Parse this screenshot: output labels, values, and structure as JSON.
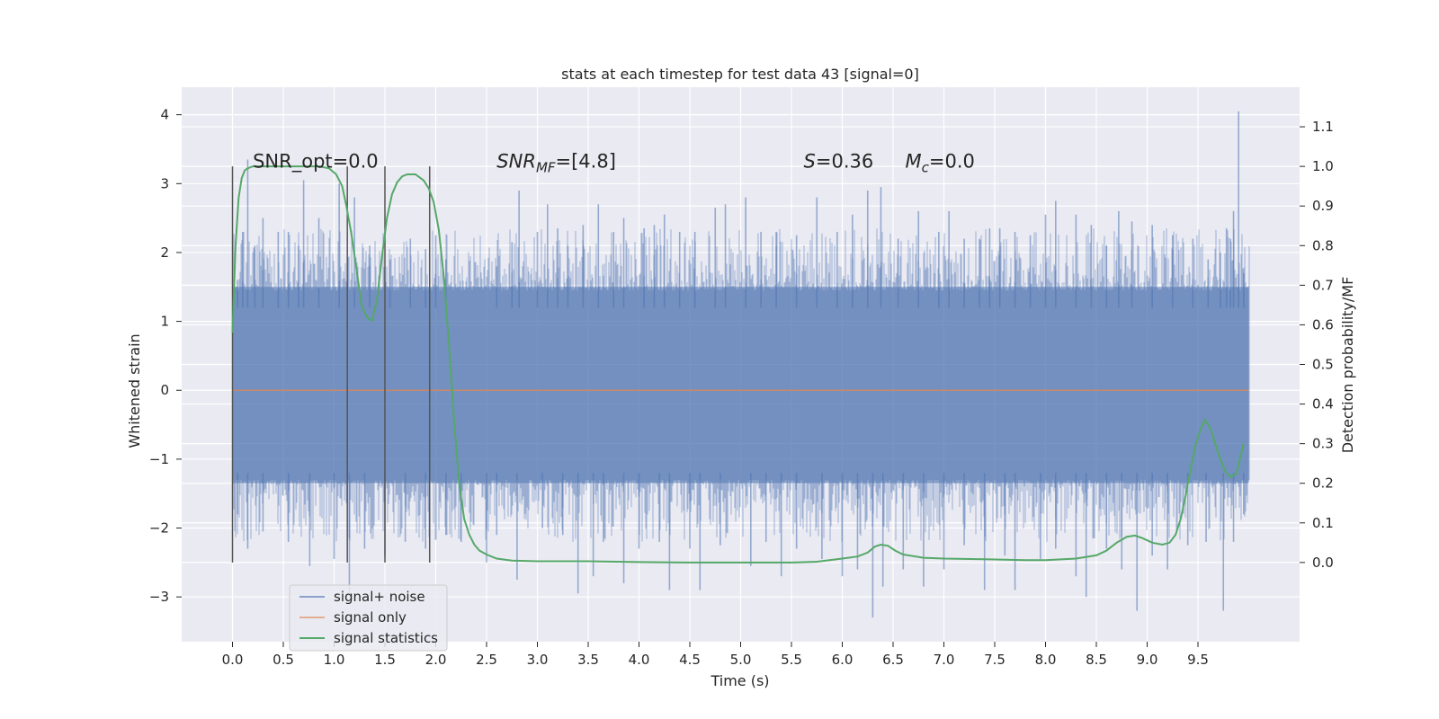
{
  "chart_data": {
    "type": "line",
    "title": "stats at each timestep for test data 43 [signal=0]",
    "xlabel": "Time (s)",
    "ylabel": "Whitened strain",
    "y2label": "Detection probability/MF",
    "xlim": [
      -0.5,
      10.5
    ],
    "ylim": [
      -3.65,
      4.4
    ],
    "y2lim": [
      -0.2,
      1.2
    ],
    "x_ticks": [
      0.0,
      0.5,
      1.0,
      1.5,
      2.0,
      2.5,
      3.0,
      3.5,
      4.0,
      4.5,
      5.0,
      5.5,
      6.0,
      6.5,
      7.0,
      7.5,
      8.0,
      8.5,
      9.0,
      9.5
    ],
    "x_tick_labels": [
      "0.0",
      "0.5",
      "1.0",
      "1.5",
      "2.0",
      "2.5",
      "3.0",
      "3.5",
      "4.0",
      "4.5",
      "5.0",
      "5.5",
      "6.0",
      "6.5",
      "7.0",
      "7.5",
      "8.0",
      "8.5",
      "9.0",
      "9.5"
    ],
    "y_ticks": [
      -3,
      -2,
      -1,
      0,
      1,
      2,
      3,
      4
    ],
    "y_tick_labels": [
      "−3",
      "−2",
      "−1",
      "0",
      "1",
      "2",
      "3",
      "4"
    ],
    "y2_ticks": [
      0.0,
      0.1,
      0.2,
      0.3,
      0.4,
      0.5,
      0.6,
      0.7,
      0.8,
      0.9,
      1.0,
      1.1
    ],
    "y2_tick_labels": [
      "0.0",
      "0.1",
      "0.2",
      "0.3",
      "0.4",
      "0.5",
      "0.6",
      "0.7",
      "0.8",
      "0.9",
      "1.0",
      "1.1"
    ],
    "grid": true,
    "legend_position": "lower-left",
    "series": [
      {
        "name": "signal+ noise",
        "color": "#4c72b0",
        "noise_band": [
          -1.35,
          1.5
        ],
        "t_range": [
          0.0,
          10.0
        ],
        "peaks": [
          [
            0.05,
            1.6
          ],
          [
            0.1,
            2.3
          ],
          [
            0.15,
            3.35
          ],
          [
            0.22,
            2.1
          ],
          [
            0.3,
            2.5
          ],
          [
            0.45,
            2.3
          ],
          [
            0.55,
            2.3
          ],
          [
            0.65,
            2.1
          ],
          [
            0.7,
            3.05
          ],
          [
            0.85,
            2.5
          ],
          [
            1.05,
            3.0
          ],
          [
            1.2,
            2.8
          ],
          [
            1.35,
            2.1
          ],
          [
            1.55,
            1.9
          ],
          [
            1.75,
            2.2
          ],
          [
            1.9,
            2.05
          ],
          [
            2.0,
            2.25
          ],
          [
            2.1,
            1.9
          ],
          [
            2.6,
            1.8
          ],
          [
            2.75,
            2.15
          ],
          [
            2.82,
            2.9
          ],
          [
            3.0,
            2.3
          ],
          [
            3.1,
            2.7
          ],
          [
            3.2,
            2.35
          ],
          [
            3.3,
            2.1
          ],
          [
            3.45,
            2.4
          ],
          [
            3.6,
            2.7
          ],
          [
            3.75,
            2.3
          ],
          [
            3.85,
            2.5
          ],
          [
            4.05,
            2.35
          ],
          [
            4.15,
            2.4
          ],
          [
            4.25,
            2.55
          ],
          [
            4.4,
            2.3
          ],
          [
            4.55,
            2.3
          ],
          [
            4.75,
            2.65
          ],
          [
            4.85,
            2.7
          ],
          [
            5.05,
            2.8
          ],
          [
            5.2,
            2.3
          ],
          [
            5.35,
            2.3
          ],
          [
            5.55,
            2.25
          ],
          [
            5.75,
            2.8
          ],
          [
            5.95,
            2.3
          ],
          [
            6.1,
            2.55
          ],
          [
            6.25,
            2.9
          ],
          [
            6.38,
            2.95
          ],
          [
            6.55,
            2.2
          ],
          [
            6.75,
            2.6
          ],
          [
            6.95,
            2.3
          ],
          [
            7.05,
            2.6
          ],
          [
            7.2,
            2.2
          ],
          [
            7.35,
            2.2
          ],
          [
            7.45,
            2.35
          ],
          [
            7.55,
            2.35
          ],
          [
            7.7,
            2.3
          ],
          [
            7.85,
            2.25
          ],
          [
            8.0,
            2.55
          ],
          [
            8.1,
            2.75
          ],
          [
            8.3,
            2.55
          ],
          [
            8.45,
            2.4
          ],
          [
            8.6,
            2.1
          ],
          [
            8.72,
            2.6
          ],
          [
            8.85,
            2.45
          ],
          [
            9.05,
            2.4
          ],
          [
            9.25,
            2.25
          ],
          [
            9.45,
            2.2
          ],
          [
            9.6,
            1.9
          ],
          [
            9.72,
            2.0
          ],
          [
            9.78,
            2.35
          ],
          [
            9.82,
            2.2
          ],
          [
            9.85,
            2.6
          ],
          [
            9.9,
            4.05
          ],
          [
            9.95,
            1.7
          ]
        ],
        "troughs": [
          [
            0.05,
            -1.8
          ],
          [
            0.15,
            -2.3
          ],
          [
            0.3,
            -2.05
          ],
          [
            0.55,
            -2.2
          ],
          [
            0.76,
            -2.55
          ],
          [
            1.0,
            -2.45
          ],
          [
            1.15,
            -2.95
          ],
          [
            1.3,
            -2.3
          ],
          [
            1.5,
            -2.4
          ],
          [
            1.7,
            -2.2
          ],
          [
            1.9,
            -2.3
          ],
          [
            2.1,
            -2.1
          ],
          [
            2.25,
            -2.2
          ],
          [
            2.5,
            -2.5
          ],
          [
            2.6,
            -2.1
          ],
          [
            2.8,
            -2.75
          ],
          [
            3.05,
            -2.0
          ],
          [
            3.25,
            -2.1
          ],
          [
            3.4,
            -2.95
          ],
          [
            3.55,
            -2.7
          ],
          [
            3.65,
            -2.2
          ],
          [
            3.85,
            -2.8
          ],
          [
            4.0,
            -2.3
          ],
          [
            4.2,
            -2.2
          ],
          [
            4.3,
            -2.9
          ],
          [
            4.5,
            -2.3
          ],
          [
            4.6,
            -2.9
          ],
          [
            4.8,
            -2.25
          ],
          [
            5.1,
            -2.55
          ],
          [
            5.25,
            -2.2
          ],
          [
            5.4,
            -2.7
          ],
          [
            5.55,
            -2.3
          ],
          [
            5.8,
            -2.45
          ],
          [
            6.0,
            -2.7
          ],
          [
            6.15,
            -2.6
          ],
          [
            6.3,
            -3.3
          ],
          [
            6.4,
            -2.85
          ],
          [
            6.6,
            -2.6
          ],
          [
            6.8,
            -2.85
          ],
          [
            7.0,
            -2.6
          ],
          [
            7.2,
            -2.25
          ],
          [
            7.4,
            -2.9
          ],
          [
            7.6,
            -2.4
          ],
          [
            7.7,
            -2.9
          ],
          [
            7.95,
            -2.45
          ],
          [
            8.1,
            -2.3
          ],
          [
            8.3,
            -2.7
          ],
          [
            8.4,
            -3.0
          ],
          [
            8.6,
            -2.3
          ],
          [
            8.75,
            -2.6
          ],
          [
            8.9,
            -3.2
          ],
          [
            9.05,
            -2.4
          ],
          [
            9.2,
            -2.6
          ],
          [
            9.4,
            -2.25
          ],
          [
            9.58,
            -2.2
          ],
          [
            9.75,
            -3.2
          ],
          [
            9.85,
            -2.2
          ],
          [
            9.95,
            -1.8
          ]
        ]
      },
      {
        "name": "signal only",
        "color": "#dd8452",
        "x": [
          0.0,
          10.0
        ],
        "y": [
          0.0,
          0.0
        ]
      },
      {
        "name": "signal statistics",
        "color": "#55a868",
        "axis": "right",
        "x": [
          0.0,
          0.03,
          0.06,
          0.09,
          0.12,
          0.15,
          0.2,
          0.3,
          0.5,
          0.7,
          0.85,
          0.95,
          1.02,
          1.08,
          1.12,
          1.17,
          1.22,
          1.27,
          1.32,
          1.37,
          1.42,
          1.47,
          1.52,
          1.57,
          1.62,
          1.67,
          1.72,
          1.8,
          1.88,
          1.93,
          1.98,
          2.03,
          2.08,
          2.13,
          2.18,
          2.23,
          2.28,
          2.33,
          2.38,
          2.43,
          2.5,
          2.6,
          2.75,
          3.0,
          3.5,
          4.0,
          4.5,
          5.0,
          5.5,
          5.75,
          6.0,
          6.15,
          6.25,
          6.32,
          6.38,
          6.45,
          6.52,
          6.6,
          6.8,
          7.0,
          7.4,
          7.8,
          8.0,
          8.3,
          8.5,
          8.6,
          8.7,
          8.8,
          8.88,
          8.95,
          9.05,
          9.15,
          9.22,
          9.28,
          9.33,
          9.38,
          9.43,
          9.48,
          9.53,
          9.57,
          9.62,
          9.67,
          9.72,
          9.77,
          9.82,
          9.88,
          9.95
        ],
        "y": [
          0.58,
          0.8,
          0.92,
          0.97,
          0.99,
          0.995,
          1.0,
          1.0,
          1.0,
          1.0,
          1.0,
          0.995,
          0.98,
          0.95,
          0.9,
          0.83,
          0.74,
          0.65,
          0.62,
          0.61,
          0.66,
          0.77,
          0.87,
          0.93,
          0.96,
          0.975,
          0.98,
          0.98,
          0.965,
          0.945,
          0.91,
          0.84,
          0.72,
          0.55,
          0.36,
          0.2,
          0.11,
          0.07,
          0.045,
          0.03,
          0.02,
          0.01,
          0.005,
          0.003,
          0.003,
          0.001,
          0.0,
          0.0,
          0.0,
          0.002,
          0.01,
          0.015,
          0.025,
          0.04,
          0.045,
          0.042,
          0.03,
          0.02,
          0.012,
          0.01,
          0.008,
          0.006,
          0.006,
          0.01,
          0.018,
          0.03,
          0.05,
          0.065,
          0.068,
          0.062,
          0.05,
          0.045,
          0.05,
          0.07,
          0.11,
          0.17,
          0.24,
          0.3,
          0.34,
          0.36,
          0.34,
          0.3,
          0.26,
          0.23,
          0.215,
          0.225,
          0.3
        ]
      }
    ],
    "vertical_lines": [
      0.0,
      1.13,
      1.5,
      1.94
    ],
    "vertical_line_range": [
      -2.5,
      3.25
    ],
    "annotations": [
      {
        "key": "snr_opt",
        "text": "SNR_opt=0.0",
        "x": 0.2,
        "y": 3.3
      },
      {
        "key": "snr_mf",
        "text": "SNR",
        "sub": "MF",
        "suffix": "=[4.8]",
        "x": 2.6,
        "y": 3.3,
        "italic": true
      },
      {
        "key": "s",
        "text": "S",
        "suffix": "=0.36",
        "x": 5.62,
        "y": 3.3,
        "italic": true
      },
      {
        "key": "mc",
        "text": "M",
        "sub": "c",
        "suffix": "=0.0",
        "x": 6.62,
        "y": 3.3,
        "italic": true
      }
    ]
  }
}
